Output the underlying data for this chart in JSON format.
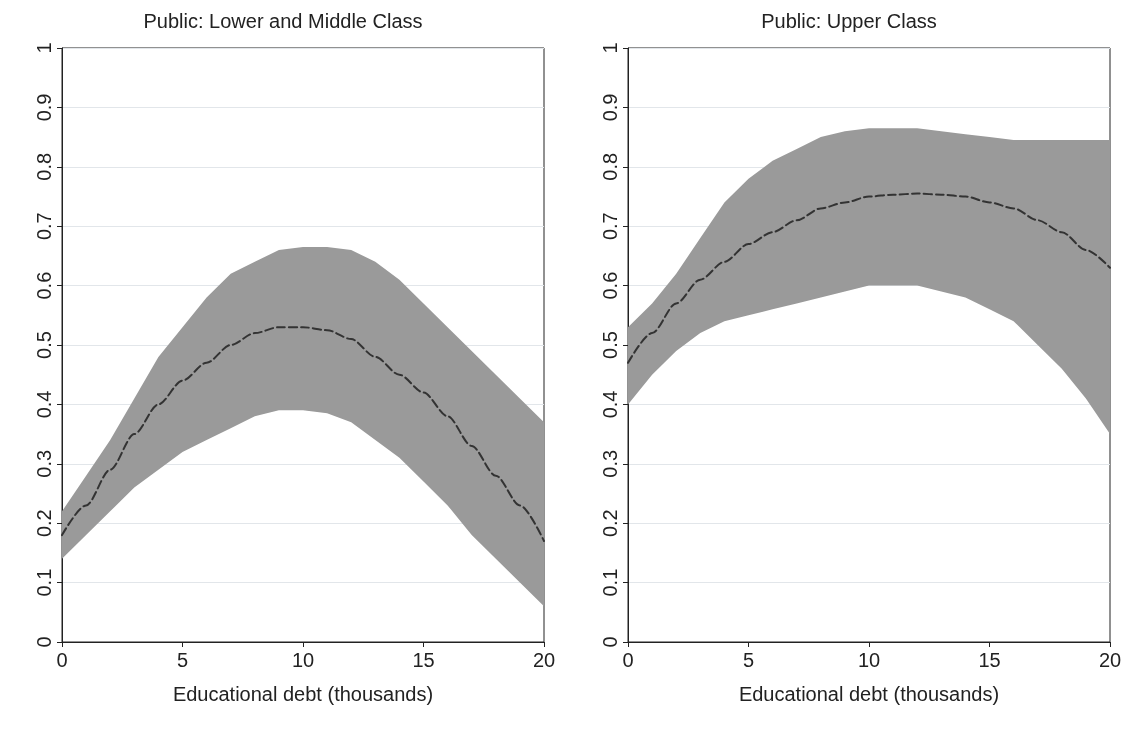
{
  "chart_data": [
    {
      "type": "line",
      "title": "Public: Lower and Middle Class",
      "xlabel": "Educational debt (thousands)",
      "x": [
        0,
        1,
        2,
        3,
        4,
        5,
        6,
        7,
        8,
        9,
        10,
        11,
        12,
        13,
        14,
        15,
        16,
        17,
        18,
        19,
        20
      ],
      "series": [
        {
          "color": "#333333",
          "line_style": "dashed",
          "values": [
            0.18,
            0.23,
            0.29,
            0.35,
            0.4,
            0.44,
            0.47,
            0.5,
            0.52,
            0.53,
            0.53,
            0.525,
            0.51,
            0.48,
            0.45,
            0.42,
            0.38,
            0.33,
            0.28,
            0.23,
            0.17
          ],
          "lower": [
            0.14,
            0.18,
            0.22,
            0.26,
            0.29,
            0.32,
            0.34,
            0.36,
            0.38,
            0.39,
            0.39,
            0.385,
            0.37,
            0.34,
            0.31,
            0.27,
            0.23,
            0.18,
            0.14,
            0.1,
            0.06
          ],
          "upper": [
            0.22,
            0.28,
            0.34,
            0.41,
            0.48,
            0.53,
            0.58,
            0.62,
            0.64,
            0.66,
            0.665,
            0.665,
            0.66,
            0.64,
            0.61,
            0.57,
            0.53,
            0.49,
            0.45,
            0.41,
            0.37
          ]
        }
      ],
      "xlim": [
        0,
        20
      ],
      "xticks": [
        0,
        5,
        10,
        15,
        20
      ],
      "ylim": [
        0,
        1
      ],
      "yticks": [
        0,
        0.1,
        0.2,
        0.3,
        0.4,
        0.5,
        0.6,
        0.7,
        0.8,
        0.9,
        1
      ],
      "grid": "y",
      "marker": "none"
    },
    {
      "type": "line",
      "title": "Public: Upper Class",
      "xlabel": "Educational debt (thousands)",
      "x": [
        0,
        1,
        2,
        3,
        4,
        5,
        6,
        7,
        8,
        9,
        10,
        11,
        12,
        13,
        14,
        15,
        16,
        17,
        18,
        19,
        20
      ],
      "series": [
        {
          "color": "#333333",
          "line_style": "dashed",
          "values": [
            0.47,
            0.52,
            0.57,
            0.61,
            0.64,
            0.67,
            0.69,
            0.71,
            0.73,
            0.74,
            0.75,
            0.753,
            0.755,
            0.753,
            0.75,
            0.74,
            0.73,
            0.71,
            0.69,
            0.66,
            0.63
          ],
          "lower": [
            0.4,
            0.45,
            0.49,
            0.52,
            0.54,
            0.55,
            0.56,
            0.57,
            0.58,
            0.59,
            0.6,
            0.6,
            0.6,
            0.59,
            0.58,
            0.56,
            0.54,
            0.5,
            0.46,
            0.41,
            0.35
          ],
          "upper": [
            0.53,
            0.57,
            0.62,
            0.68,
            0.74,
            0.78,
            0.81,
            0.83,
            0.85,
            0.86,
            0.865,
            0.865,
            0.865,
            0.86,
            0.855,
            0.85,
            0.845,
            0.845,
            0.845,
            0.845,
            0.845
          ]
        }
      ],
      "xlim": [
        0,
        20
      ],
      "xticks": [
        0,
        5,
        10,
        15,
        20
      ],
      "ylim": [
        0,
        1
      ],
      "yticks": [
        0,
        0.1,
        0.2,
        0.3,
        0.4,
        0.5,
        0.6,
        0.7,
        0.8,
        0.9,
        1
      ],
      "grid": "y",
      "marker": "none"
    }
  ]
}
